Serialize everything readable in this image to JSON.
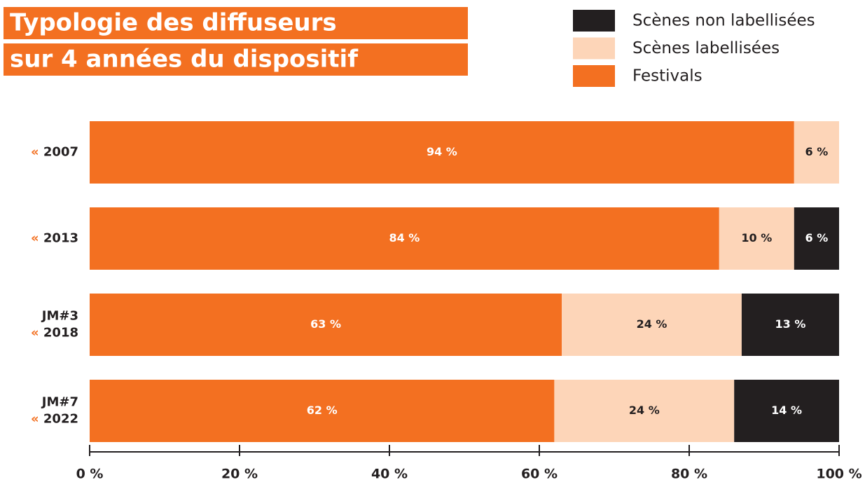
{
  "chart_data": {
    "type": "stacked-bar-horizontal",
    "title": [
      "Typologie des diffuseurs",
      "sur 4 années du dispositif"
    ],
    "categories": [
      "« 2007",
      "« 2013",
      "JM#3\n« 2018",
      "JM#7\n« 2022"
    ],
    "series": [
      {
        "name": "Festivals",
        "color": "#f37021",
        "label_color": "#ffffff",
        "values": [
          94,
          84,
          63,
          62
        ],
        "value_labels": [
          "94 %",
          "84 %",
          "63 %",
          "62 %"
        ]
      },
      {
        "name": "Scènes labellisées",
        "color": "#fdd5b8",
        "label_color": "#231f20",
        "values": [
          6,
          10,
          24,
          24
        ],
        "value_labels": [
          "6 %",
          "10 %",
          "24 %",
          "24 %"
        ]
      },
      {
        "name": "Scènes non labellisées",
        "color": "#231f20",
        "label_color": "#ffffff",
        "values": [
          null,
          6,
          13,
          14
        ],
        "value_labels": [
          null,
          "6 %",
          "13 %",
          "14 %"
        ]
      }
    ],
    "xlim": [
      0,
      100
    ],
    "xticks": [
      {
        "value": 0,
        "label": "0 %"
      },
      {
        "value": 20,
        "label": "20 %"
      },
      {
        "value": 40,
        "label": "40 %"
      },
      {
        "value": 60,
        "label": "60 %"
      },
      {
        "value": 80,
        "label": "80 %"
      },
      {
        "value": 100,
        "label": "100 %"
      }
    ],
    "legend": "top-right"
  }
}
